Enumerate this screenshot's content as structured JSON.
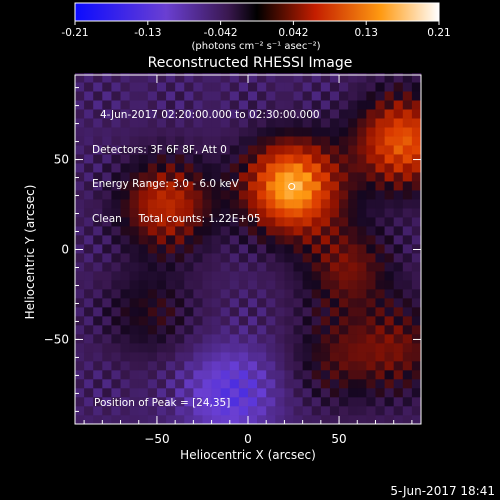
{
  "chart_data": {
    "type": "heatmap",
    "title": "Reconstructed RHESSI Image",
    "xlabel": "Heliocentric X (arcsec)",
    "ylabel": "Heliocentric Y (arcsec)",
    "xlim": [
      -95,
      95
    ],
    "ylim": [
      -97,
      97
    ],
    "xticks": [
      -50,
      0,
      50
    ],
    "yticks": [
      50,
      0,
      -50
    ],
    "colorbar": {
      "ticks": [
        "-0.21",
        "-0.13",
        "-0.042",
        "0.042",
        "0.13",
        "0.21"
      ],
      "range": [
        -0.21,
        0.21
      ],
      "units": "(photons cm⁻² s⁻¹ asec⁻²)",
      "colors": [
        "#0b0bff",
        "#6a3fd2",
        "#3a1850",
        "#000000",
        "#c41e00",
        "#ff9a12",
        "#ffffff"
      ]
    },
    "peak": {
      "x": 24,
      "y": 35,
      "value": 0.21
    },
    "sources": [
      {
        "x": 24,
        "y": 35,
        "amplitude": 0.21
      },
      {
        "x": -45,
        "y": 25,
        "amplitude": 0.12
      },
      {
        "x": 85,
        "y": 60,
        "amplitude": 0.16
      },
      {
        "x": 55,
        "y": -10,
        "amplitude": 0.08
      },
      {
        "x": 50,
        "y": -60,
        "amplitude": 0.06
      },
      {
        "x": -55,
        "y": -35,
        "amplitude": 0.05
      },
      {
        "x": 85,
        "y": -55,
        "amplitude": 0.07
      },
      {
        "x": -10,
        "y": -80,
        "amplitude": -0.08
      }
    ],
    "annotations": {
      "time_range": "4-Jun-2017 02:20:00.000 to 02:30:00.000",
      "detectors": "Detectors: 3F 6F 8F, Att 0",
      "energy_range": "Energy Range: 3.0 - 6.0 keV",
      "method": "Clean",
      "total_counts": "Total counts: 1.22E+05",
      "position_of_peak": "Position of Peak = [24,35]"
    }
  },
  "footer": {
    "timestamp": "5-Jun-2017 18:41"
  }
}
